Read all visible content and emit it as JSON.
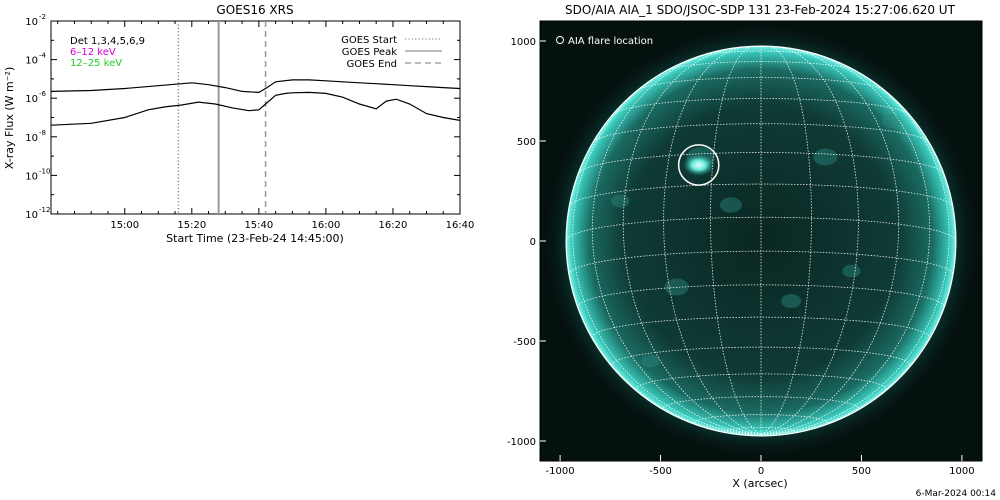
{
  "chart_data": [
    {
      "type": "line",
      "title": "GOES16 XRS",
      "xlabel": "Start Time (23-Feb-24 14:45:00)",
      "ylabel": "X-ray Flux (W m⁻²)",
      "x_unit": "minutes since 14:45:00",
      "xlim": [
        -7,
        115
      ],
      "x_ticks": [
        {
          "x": 15,
          "label": "15:00"
        },
        {
          "x": 35,
          "label": "15:20"
        },
        {
          "x": 55,
          "label": "15:40"
        },
        {
          "x": 75,
          "label": "16:00"
        },
        {
          "x": 95,
          "label": "16:20"
        },
        {
          "x": 115,
          "label": "16:40"
        }
      ],
      "y_scale": "log",
      "ylim": [
        1e-12,
        0.01
      ],
      "y_ticks": [
        {
          "exp": -2,
          "label": "10"
        },
        {
          "exp": -4,
          "label": "10"
        },
        {
          "exp": -6,
          "label": "10"
        },
        {
          "exp": -8,
          "label": "10"
        },
        {
          "exp": -10,
          "label": "10"
        },
        {
          "exp": -12,
          "label": "10"
        }
      ],
      "detectors_label": "Det 1,3,4,5,6,9",
      "energy_labels": [
        {
          "text": "6–12 keV",
          "color": "#d000d0"
        },
        {
          "text": "12–25 keV",
          "color": "#22cc22"
        }
      ],
      "legend": [
        {
          "label": "GOES Start",
          "style": "dotted"
        },
        {
          "label": "GOES Peak",
          "style": "solid"
        },
        {
          "label": "GOES End",
          "style": "dashed"
        }
      ],
      "legend_position": "top-right",
      "event_lines": [
        {
          "name": "GOES Start",
          "x": 31,
          "style": "dotted",
          "color": "#888888"
        },
        {
          "name": "GOES Peak",
          "x": 43,
          "style": "solid",
          "color": "#999999"
        },
        {
          "name": "GOES End",
          "x": 57,
          "style": "dashed",
          "color": "#999999"
        }
      ],
      "series": [
        {
          "color": "#000000",
          "x": [
            -7,
            5,
            15,
            25,
            35,
            40,
            45,
            50,
            55,
            57,
            60,
            65,
            70,
            75,
            80,
            85,
            90,
            95,
            100,
            105,
            110,
            115
          ],
          "log_values": [
            -5.65,
            -5.6,
            -5.5,
            -5.35,
            -5.2,
            -5.3,
            -5.45,
            -5.65,
            -5.7,
            -5.5,
            -5.15,
            -5.05,
            -5.05,
            -5.1,
            -5.15,
            -5.2,
            -5.25,
            -5.3,
            -5.35,
            -5.4,
            -5.45,
            -5.5
          ]
        },
        {
          "color": "#000000",
          "x": [
            -7,
            5,
            15,
            22,
            27,
            32,
            37,
            42,
            47,
            52,
            55,
            57,
            60,
            63,
            65,
            70,
            75,
            80,
            85,
            90,
            93,
            96,
            100,
            105,
            110,
            115
          ],
          "log_values": [
            -7.4,
            -7.3,
            -7.0,
            -6.6,
            -6.45,
            -6.35,
            -6.2,
            -6.3,
            -6.5,
            -6.65,
            -6.6,
            -6.3,
            -5.85,
            -5.75,
            -5.72,
            -5.7,
            -5.75,
            -5.95,
            -6.3,
            -6.55,
            -6.15,
            -6.05,
            -6.3,
            -6.8,
            -7.0,
            -7.15
          ]
        }
      ]
    },
    {
      "type": "other",
      "title": "SDO/AIA AIA_1 SDO/JSOC-SDP 131 23-Feb-2024 15:27:06.620 UT",
      "xlabel": "X (arcsec)",
      "ylabel": "",
      "xlim": [
        -1100,
        1100
      ],
      "ylim": [
        -1100,
        1100
      ],
      "x_ticks": [
        -1000,
        -500,
        0,
        500,
        1000
      ],
      "y_ticks": [
        -1000,
        -500,
        0,
        500,
        1000
      ],
      "solar_radius_arcsec": 970,
      "colors": {
        "background": "#05110f",
        "disk": "#0d3a34",
        "limb_glow": "#2ee6d6",
        "grid": "#ffffff"
      },
      "legend": [
        {
          "label": "AIA flare location",
          "marker": "open-circle"
        }
      ],
      "flare_location": {
        "x": -310,
        "y": 380,
        "radius": 100
      },
      "footer_text": "6-Mar-2024 00:14"
    }
  ]
}
